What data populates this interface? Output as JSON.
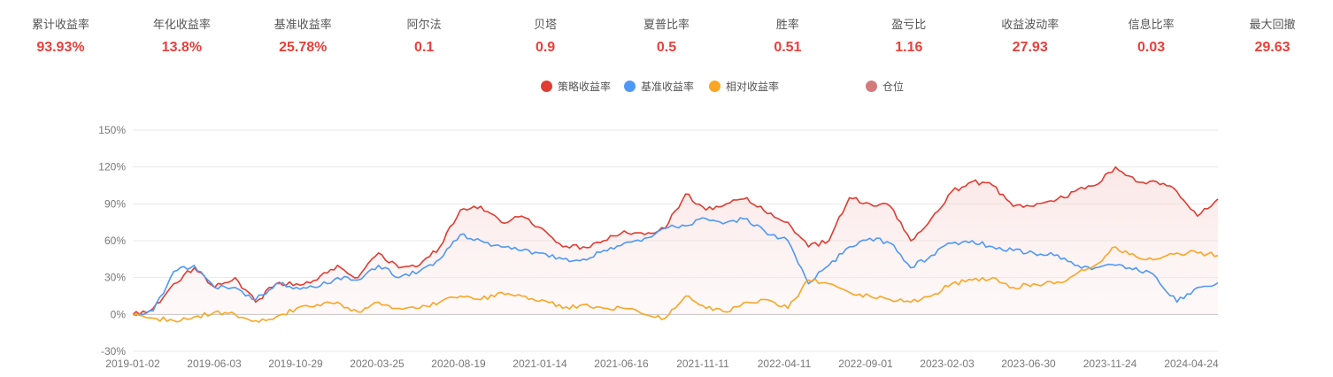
{
  "stats": [
    {
      "label": "累计收益率",
      "value": "93.93%"
    },
    {
      "label": "年化收益率",
      "value": "13.8%"
    },
    {
      "label": "基准收益率",
      "value": "25.78%"
    },
    {
      "label": "阿尔法",
      "value": "0.1"
    },
    {
      "label": "贝塔",
      "value": "0.9"
    },
    {
      "label": "夏普比率",
      "value": "0.5"
    },
    {
      "label": "胜率",
      "value": "0.51"
    },
    {
      "label": "盈亏比",
      "value": "1.16"
    },
    {
      "label": "收益波动率",
      "value": "27.93"
    },
    {
      "label": "信息比率",
      "value": "0.03"
    },
    {
      "label": "最大回撤",
      "value": "29.63"
    }
  ],
  "chart_data": {
    "type": "line",
    "legend_position": "top",
    "grid": true,
    "ylim": [
      -30,
      150
    ],
    "y_ticks": [
      "-30%",
      "0%",
      "30%",
      "60%",
      "90%",
      "120%",
      "150%"
    ],
    "y_tick_values": [
      -30,
      0,
      30,
      60,
      90,
      120,
      150
    ],
    "x_ticks": [
      "2019-01-02",
      "2019-06-03",
      "2019-10-29",
      "2020-03-25",
      "2020-08-19",
      "2021-01-14",
      "2021-06-16",
      "2021-11-11",
      "2022-04-11",
      "2022-09-01",
      "2023-02-03",
      "2023-06-30",
      "2023-11-24",
      "2024-04-24"
    ],
    "series": [
      {
        "name": "策略收益率",
        "color": "#e03c31",
        "area": true,
        "values": [
          0,
          5,
          25,
          38,
          22,
          30,
          10,
          25,
          25,
          28,
          40,
          30,
          50,
          38,
          40,
          55,
          85,
          88,
          75,
          80,
          70,
          55,
          55,
          60,
          68,
          65,
          70,
          98,
          85,
          90,
          95,
          82,
          75,
          55,
          60,
          95,
          90,
          88,
          60,
          78,
          100,
          108,
          105,
          88,
          88,
          92,
          100,
          105,
          120,
          108,
          108,
          100,
          80,
          93.93
        ]
      },
      {
        "name": "基准收益率",
        "color": "#4f98f7",
        "values": [
          0,
          3,
          35,
          40,
          22,
          22,
          12,
          25,
          22,
          22,
          30,
          28,
          40,
          30,
          35,
          45,
          65,
          60,
          55,
          52,
          50,
          45,
          45,
          52,
          58,
          62,
          70,
          72,
          78,
          75,
          78,
          65,
          60,
          25,
          40,
          55,
          62,
          58,
          38,
          48,
          58,
          60,
          55,
          52,
          50,
          48,
          40,
          38,
          40,
          38,
          30,
          10,
          22,
          25.78
        ]
      },
      {
        "name": "相对收益率",
        "color": "#fba524",
        "values": [
          0,
          -3,
          -5,
          -2,
          2,
          0,
          -5,
          -2,
          5,
          8,
          10,
          2,
          10,
          5,
          5,
          10,
          15,
          12,
          18,
          15,
          12,
          5,
          8,
          5,
          5,
          0,
          -3,
          15,
          5,
          2,
          10,
          12,
          5,
          28,
          25,
          18,
          15,
          12,
          10,
          15,
          25,
          28,
          30,
          22,
          25,
          25,
          32,
          40,
          55,
          47,
          45,
          50,
          50,
          48
        ]
      },
      {
        "name": "仓位",
        "color": "#d47a7a",
        "values": []
      }
    ]
  }
}
